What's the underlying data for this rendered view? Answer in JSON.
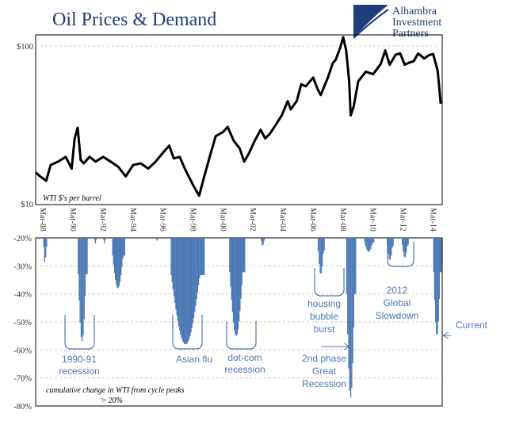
{
  "chart_data": [
    {
      "type": "line",
      "title": "Oil Prices & Demand",
      "ylabel": "WTI $'s per barrel",
      "yscale": "log",
      "ylim": [
        10,
        140
      ],
      "y_ticks": [
        "$10",
        "$100"
      ],
      "x_ticks": [
        "Mar-88",
        "Mar-90",
        "Mar-92",
        "Mar-94",
        "Mar-96",
        "Mar-98",
        "Mar-00",
        "Mar-02",
        "Mar-04",
        "Mar-06",
        "Mar-08",
        "Mar-10",
        "Mar-12",
        "Mar-14"
      ],
      "series": [
        {
          "color": "#000000",
          "x": [
            1988.0,
            1988.3,
            1988.7,
            1989.0,
            1989.5,
            1990.0,
            1990.4,
            1990.6,
            1990.8,
            1991.0,
            1991.2,
            1991.6,
            1992.0,
            1992.5,
            1993.0,
            1993.5,
            1994.0,
            1994.5,
            1995.0,
            1995.5,
            1996.0,
            1996.5,
            1996.9,
            1997.2,
            1997.6,
            1998.0,
            1998.5,
            1998.9,
            1999.2,
            1999.6,
            2000.0,
            2000.5,
            2000.8,
            2001.2,
            2001.6,
            2001.9,
            2002.2,
            2002.6,
            2003.0,
            2003.3,
            2003.6,
            2004.0,
            2004.4,
            2004.8,
            2005.0,
            2005.4,
            2005.7,
            2006.0,
            2006.5,
            2006.8,
            2007.0,
            2007.5,
            2007.8,
            2008.0,
            2008.3,
            2008.5,
            2008.7,
            2008.9,
            2009.0,
            2009.2,
            2009.5,
            2010.0,
            2010.5,
            2011.0,
            2011.3,
            2011.6,
            2012.0,
            2012.3,
            2012.6,
            2012.9,
            2013.2,
            2013.5,
            2013.9,
            2014.2,
            2014.5,
            2014.8,
            2015.0
          ],
          "values": [
            16.5,
            15.5,
            14.5,
            18.5,
            19.5,
            21.0,
            17.5,
            28.0,
            33.0,
            20.0,
            19.0,
            21.0,
            19.5,
            21.0,
            19.5,
            18.0,
            15.5,
            18.5,
            19.0,
            17.5,
            19.5,
            22.5,
            25.0,
            20.5,
            21.0,
            17.0,
            13.5,
            11.5,
            15.0,
            21.0,
            29.0,
            31.0,
            33.5,
            27.0,
            24.0,
            19.5,
            22.0,
            27.0,
            32.0,
            28.0,
            30.0,
            34.5,
            40.0,
            50.0,
            44.0,
            50.0,
            65.0,
            63.0,
            72.0,
            60.0,
            55.0,
            73.0,
            90.0,
            95.0,
            115.0,
            135.0,
            110.0,
            68.0,
            40.0,
            46.0,
            68.0,
            79.0,
            76.0,
            89.0,
            110.0,
            88.0,
            103.0,
            105.0,
            88.0,
            91.0,
            93.0,
            105.0,
            97.0,
            102.0,
            104.0,
            80.0,
            48.0
          ]
        }
      ]
    },
    {
      "type": "bar",
      "title": "",
      "note": "cumulative change in WTI from cycle peaks > 20%",
      "ylim": [
        -80,
        -20
      ],
      "y_ticks": [
        "-20%",
        "-30%",
        "-40%",
        "-50%",
        "-60%",
        "-70%",
        "-80%"
      ],
      "series": [
        {
          "color": "#4a78b5",
          "episodes": [
            {
              "start": 1988.5,
              "end": 1988.7,
              "min": -29
            },
            {
              "start": 1990.8,
              "end": 1991.4,
              "min": -57
            },
            {
              "start": 1991.9,
              "end": 1992.0,
              "min": -22
            },
            {
              "start": 1992.5,
              "end": 1992.6,
              "min": -22
            },
            {
              "start": 1993.1,
              "end": 1993.9,
              "min": -38
            },
            {
              "start": 1996.0,
              "end": 1996.1,
              "min": -21
            },
            {
              "start": 1997.0,
              "end": 1999.2,
              "min": -58
            },
            {
              "start": 2000.9,
              "end": 2001.9,
              "min": -55
            },
            {
              "start": 2003.0,
              "end": 2003.2,
              "min": -23
            },
            {
              "start": 2006.8,
              "end": 2007.2,
              "min": -33
            },
            {
              "start": 2008.7,
              "end": 2009.3,
              "min": -77
            },
            {
              "start": 2009.9,
              "end": 2010.5,
              "min": -25
            },
            {
              "start": 2011.4,
              "end": 2011.8,
              "min": -28
            },
            {
              "start": 2012.4,
              "end": 2012.8,
              "min": -27
            },
            {
              "start": 2014.5,
              "end": 2015.0,
              "min": -55
            }
          ]
        }
      ],
      "annotations": [
        {
          "id": "a1991",
          "lines": [
            "1990-91",
            "recession"
          ]
        },
        {
          "id": "aasia",
          "lines": [
            "Asian flu"
          ]
        },
        {
          "id": "adotcom",
          "lines": [
            "dot-com",
            "recession"
          ]
        },
        {
          "id": "ahousing",
          "lines": [
            "housing",
            "bubble",
            "burst"
          ]
        },
        {
          "id": "a2nd",
          "lines": [
            "2nd phase",
            "Great",
            "Recession"
          ]
        },
        {
          "id": "a2012",
          "lines": [
            "2012",
            "Global",
            "Slowdown"
          ]
        },
        {
          "id": "acurrent",
          "lines": [
            "Current"
          ]
        }
      ]
    }
  ],
  "brand": {
    "lines": [
      "Alhambra",
      "Investment",
      "Partners"
    ]
  }
}
